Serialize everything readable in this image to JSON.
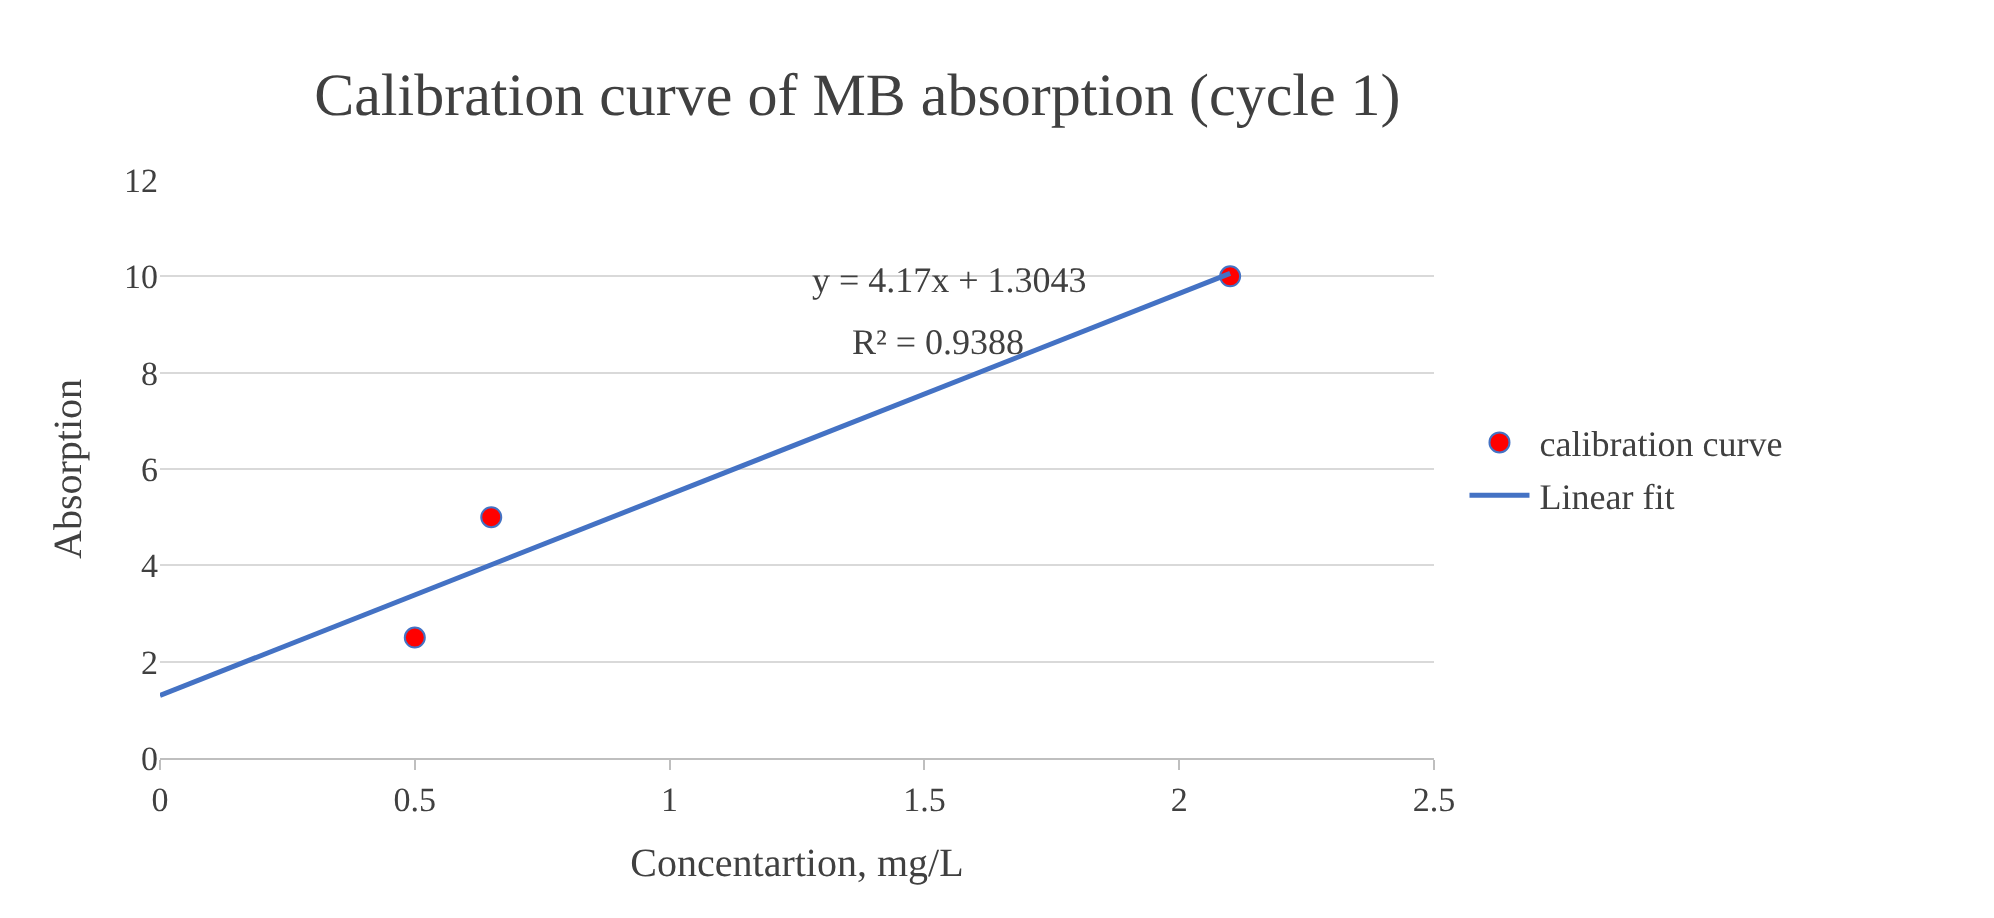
{
  "chart_data": {
    "type": "scatter",
    "title": "Calibration curve of MB absorption (cycle 1)",
    "xlabel": "Concentartion, mg/L",
    "ylabel": "Absorption",
    "series": [
      {
        "name": "calibration curve",
        "marker": "circle",
        "color": "#ff0000",
        "x": [
          0.5,
          0.65,
          2.1
        ],
        "values": [
          2.5,
          5,
          10
        ]
      },
      {
        "name": "Linear fit",
        "type": "line",
        "color": "#4472c4",
        "x": [
          0,
          2.1
        ],
        "values": [
          1.3,
          10.06
        ]
      }
    ],
    "xlim": [
      0,
      2.5
    ],
    "xticks": [
      0,
      0.5,
      1,
      1.5,
      2,
      2.5
    ],
    "ylim": [
      0,
      12
    ],
    "yticks": [
      0,
      2,
      4,
      6,
      8,
      10,
      12
    ],
    "annotations": [
      "y = 4.17x + 1.3043",
      "R² = 0.9388"
    ],
    "grid": "y",
    "legend": "right"
  }
}
